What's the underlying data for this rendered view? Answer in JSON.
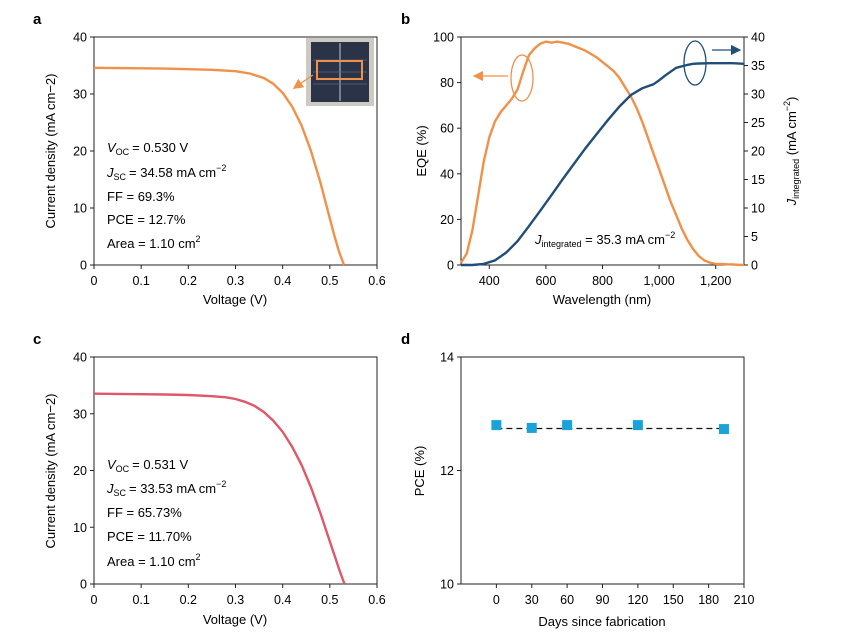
{
  "colors": {
    "orange": "#f0914a",
    "navy": "#1f4e79",
    "red": "#de5869",
    "square": "#1aa3da"
  },
  "chart_data": [
    {
      "id": "a",
      "panel_label": "a",
      "type": "line",
      "xlabel": "Voltage (V)",
      "ylabel": "Current density (mA cm−2)",
      "xlim": [
        0,
        0.6
      ],
      "ylim": [
        0,
        40
      ],
      "xticks": [
        "0",
        "0.1",
        "0.2",
        "0.3",
        "0.4",
        "0.5",
        "0.6"
      ],
      "yticks": [
        "0",
        "10",
        "20",
        "30",
        "40"
      ],
      "series": [
        {
          "color": "#f0914a",
          "x": [
            0,
            0.05,
            0.1,
            0.15,
            0.2,
            0.25,
            0.3,
            0.33,
            0.36,
            0.38,
            0.4,
            0.42,
            0.44,
            0.46,
            0.48,
            0.5,
            0.51,
            0.52,
            0.53
          ],
          "y": [
            34.6,
            34.55,
            34.5,
            34.45,
            34.35,
            34.25,
            34.0,
            33.6,
            32.8,
            31.8,
            30.2,
            27.8,
            24.5,
            20.0,
            14.5,
            8.2,
            5.0,
            2.2,
            0
          ]
        }
      ],
      "annotations": {
        "voc": {
          "sym": "V",
          "sub": "OC",
          "value": "= 0.530 V"
        },
        "jsc": {
          "sym": "J",
          "sub": "SC",
          "value": "= 34.58 mA cm",
          "sup": "−2"
        },
        "ff": "FF = 69.3%",
        "pce": "PCE = 12.7%",
        "area": {
          "value": "Area = 1.10 cm",
          "sup": "2"
        }
      }
    },
    {
      "id": "b",
      "panel_label": "b",
      "type": "line",
      "xlabel": "Wavelength (nm)",
      "ylabel": "EQE (%)",
      "y2label": {
        "sym": "J",
        "sub": "integrated",
        "rest": " (mA cm",
        "sup": "−2",
        "end": ")"
      },
      "xlim": [
        300,
        1300
      ],
      "ylim": [
        0,
        100
      ],
      "y2lim": [
        0,
        40
      ],
      "xticks": [
        {
          "v": 400,
          "t": "400"
        },
        {
          "v": 600,
          "t": "600"
        },
        {
          "v": 800,
          "t": "800"
        },
        {
          "v": 1000,
          "t": "1,000"
        },
        {
          "v": 1200,
          "t": "1,200"
        }
      ],
      "yticks": [
        "0",
        "20",
        "40",
        "60",
        "80",
        "100"
      ],
      "y2ticks": [
        "0",
        "5",
        "10",
        "15",
        "20",
        "25",
        "30",
        "35",
        "40"
      ],
      "series": [
        {
          "axis": "left",
          "color": "#f0914a",
          "x": [
            300,
            320,
            340,
            360,
            380,
            400,
            420,
            440,
            460,
            480,
            500,
            520,
            540,
            560,
            580,
            600,
            620,
            640,
            660,
            680,
            700,
            720,
            740,
            760,
            780,
            800,
            820,
            840,
            860,
            880,
            900,
            920,
            940,
            960,
            980,
            1000,
            1020,
            1040,
            1060,
            1080,
            1100,
            1120,
            1140,
            1160,
            1180,
            1200,
            1220,
            1240,
            1260,
            1280,
            1300
          ],
          "y": [
            1,
            5,
            15,
            30,
            45,
            56,
            63,
            67,
            70,
            73,
            77,
            85,
            92,
            95,
            97,
            98,
            97.5,
            98,
            97.5,
            97,
            96,
            95,
            94,
            92.5,
            91,
            89,
            87,
            85,
            82,
            78,
            74,
            69,
            63,
            56,
            49,
            42,
            35,
            28,
            22,
            16,
            11,
            7,
            4,
            2,
            1,
            0.5,
            0.5,
            0.3,
            0.2,
            0.1,
            0
          ]
        },
        {
          "axis": "right",
          "color": "#1f4e79",
          "x": [
            300,
            340,
            380,
            420,
            460,
            500,
            540,
            580,
            620,
            660,
            700,
            740,
            780,
            820,
            860,
            900,
            940,
            980,
            1000,
            1020,
            1060,
            1100,
            1120,
            1140,
            1180,
            1220,
            1260,
            1300
          ],
          "y": [
            0,
            0,
            0.2,
            0.8,
            2.2,
            4.2,
            6.8,
            9.5,
            12.3,
            15.1,
            17.8,
            20.5,
            23.0,
            25.5,
            27.8,
            29.8,
            31.0,
            31.7,
            32.4,
            33.2,
            34.6,
            35.1,
            35.3,
            35.35,
            35.4,
            35.4,
            35.4,
            35.3
          ]
        }
      ],
      "annotations": {
        "jint": {
          "sym": "J",
          "sub": "integrated",
          "value": " = 35.3 mA cm",
          "sup": "−2"
        }
      }
    },
    {
      "id": "c",
      "panel_label": "c",
      "type": "line",
      "xlabel": "Voltage (V)",
      "ylabel": "Current density (mA cm−2)",
      "xlim": [
        0,
        0.6
      ],
      "ylim": [
        0,
        40
      ],
      "xticks": [
        "0",
        "0.1",
        "0.2",
        "0.3",
        "0.4",
        "0.5",
        "0.6"
      ],
      "yticks": [
        "0",
        "10",
        "20",
        "30",
        "40"
      ],
      "series": [
        {
          "color": "#de5869",
          "x": [
            0,
            0.05,
            0.1,
            0.15,
            0.2,
            0.25,
            0.28,
            0.3,
            0.32,
            0.34,
            0.36,
            0.38,
            0.4,
            0.42,
            0.44,
            0.46,
            0.48,
            0.5,
            0.51,
            0.52,
            0.531
          ],
          "y": [
            33.53,
            33.5,
            33.45,
            33.4,
            33.3,
            33.1,
            32.9,
            32.6,
            32.1,
            31.4,
            30.3,
            28.8,
            26.8,
            24.2,
            21.0,
            17.0,
            12.5,
            7.5,
            5.0,
            2.5,
            0
          ]
        }
      ],
      "annotations": {
        "voc": {
          "sym": "V",
          "sub": "OC",
          "value": "= 0.531 V"
        },
        "jsc": {
          "sym": "J",
          "sub": "SC",
          "value": "= 33.53 mA cm",
          "sup": "−2"
        },
        "ff": "FF = 65.73%",
        "pce": "PCE = 11.70%",
        "area": {
          "value": "Area = 1.10 cm",
          "sup": "2"
        }
      }
    },
    {
      "id": "d",
      "panel_label": "d",
      "type": "scatter",
      "xlabel": "Days since fabrication",
      "ylabel": "PCE (%)",
      "xlim": [
        -30,
        210
      ],
      "ylim": [
        10,
        14
      ],
      "xticks": [
        {
          "v": 0,
          "t": "0"
        },
        {
          "v": 30,
          "t": "30"
        },
        {
          "v": 60,
          "t": "60"
        },
        {
          "v": 90,
          "t": "90"
        },
        {
          "v": 120,
          "t": "120"
        },
        {
          "v": 150,
          "t": "150"
        },
        {
          "v": 180,
          "t": "180"
        },
        {
          "v": 210,
          "t": "210"
        }
      ],
      "yticks": [
        {
          "v": 10,
          "t": "10"
        },
        {
          "v": 12,
          "t": "12"
        },
        {
          "v": 14,
          "t": "14"
        }
      ],
      "series": [
        {
          "color": "#1aa3da",
          "x": [
            0,
            30,
            60,
            120,
            193
          ],
          "y": [
            12.8,
            12.75,
            12.8,
            12.8,
            12.73
          ]
        }
      ],
      "reference_line": {
        "y": 12.74,
        "style": "dashed",
        "x_range": [
          0,
          193
        ]
      }
    }
  ]
}
